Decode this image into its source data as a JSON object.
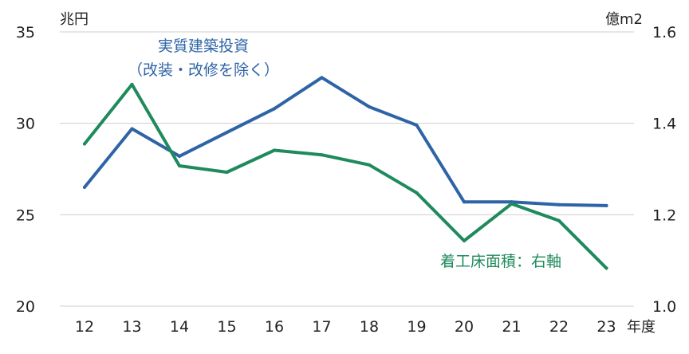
{
  "chart_data": {
    "type": "line",
    "categories": [
      "12",
      "13",
      "14",
      "15",
      "16",
      "17",
      "18",
      "19",
      "20",
      "21",
      "22",
      "23"
    ],
    "x_unit_label": "年度",
    "left_axis": {
      "unit_label": "兆円",
      "ylim": [
        20,
        35
      ],
      "ticks": [
        "20",
        "25",
        "30",
        "35"
      ],
      "grid": true
    },
    "right_axis": {
      "unit_label": "億m2",
      "ylim": [
        1.0,
        1.6
      ],
      "ticks": [
        "1.0",
        "1.2",
        "1.4",
        "1.6"
      ]
    },
    "series": [
      {
        "name": "実質建築投資（改装・改修を除く）",
        "label_lines": [
          "実質建築投資",
          "（改装・改修を除く）"
        ],
        "axis": "left",
        "color": "#2e64a6",
        "values": [
          26.5,
          29.7,
          28.2,
          29.5,
          30.8,
          32.5,
          30.9,
          29.9,
          25.7,
          25.7,
          25.55,
          25.5
        ]
      },
      {
        "name": "着工床面積：右軸",
        "label_lines": [
          "着工床面積：右軸"
        ],
        "axis": "right",
        "color": "#1f8a5c",
        "values": [
          1.355,
          1.485,
          1.307,
          1.293,
          1.341,
          1.331,
          1.309,
          1.248,
          1.143,
          1.224,
          1.187,
          1.083
        ]
      }
    ]
  }
}
